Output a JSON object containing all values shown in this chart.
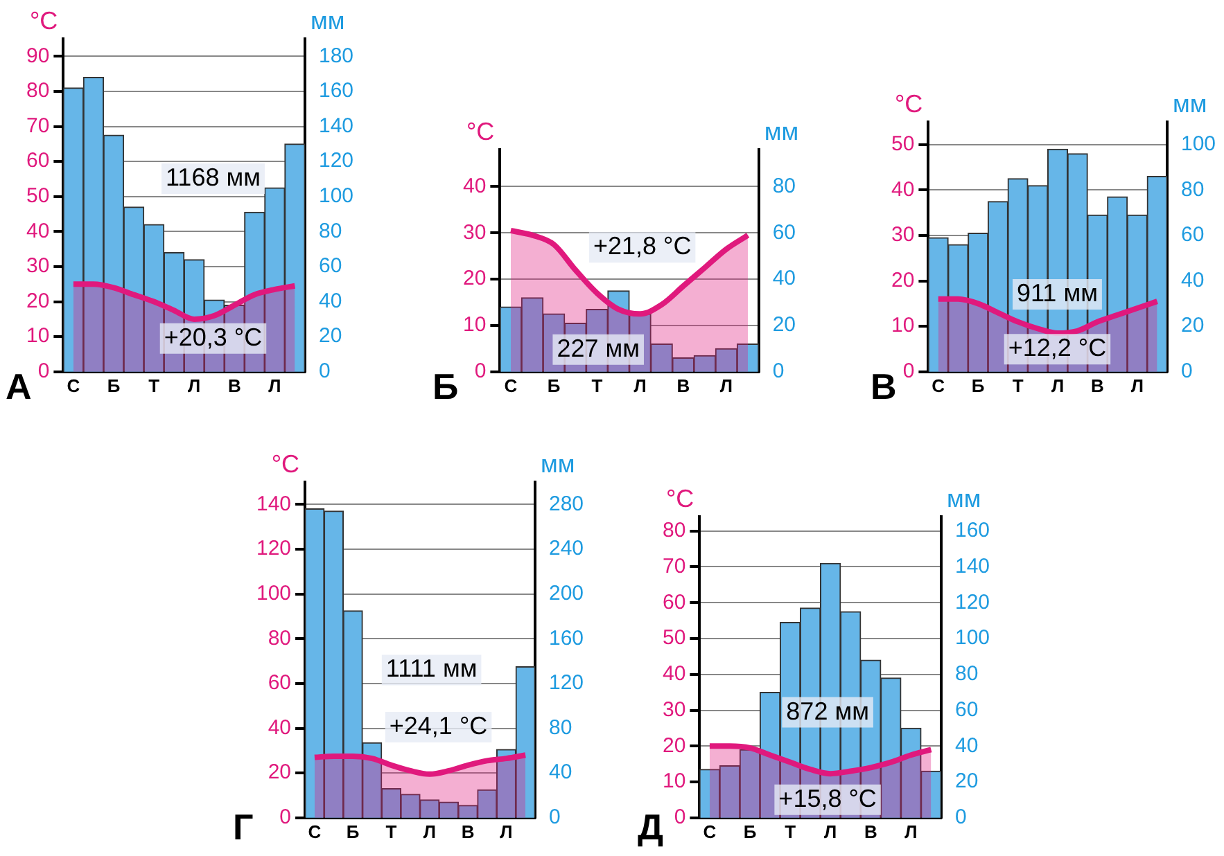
{
  "chart_data": [
    {
      "type": "bar",
      "title": "А",
      "ylabel": "°C",
      "y2label": "мм",
      "categories": [
        "С",
        null,
        "Б",
        null,
        "Т",
        null,
        "Л",
        null,
        "В",
        null,
        "Л",
        null
      ],
      "ylim": [
        0,
        95
      ],
      "yticks": [
        0,
        10,
        20,
        30,
        40,
        50,
        60,
        70,
        80,
        90
      ],
      "y2lim": [
        0,
        190
      ],
      "y2ticks": [
        0,
        20,
        40,
        60,
        80,
        100,
        120,
        140,
        160,
        180
      ],
      "grid": "y",
      "annotations": [
        "1168 мм",
        "+20,3 °C"
      ],
      "series": [
        {
          "axis": "y2",
          "color": "#66b6e8",
          "values": [
            162,
            168,
            135,
            94,
            84,
            68,
            64,
            41,
            38,
            91,
            105,
            130
          ]
        },
        {
          "type": "area",
          "color": "#e0197d",
          "values": [
            25,
            25,
            24,
            22,
            20,
            17.5,
            15,
            16,
            19,
            22,
            23.5,
            24.5
          ]
        }
      ]
    },
    {
      "type": "bar",
      "title": "Б",
      "ylabel": "°C",
      "y2label": "мм",
      "categories": [
        "С",
        null,
        "Б",
        null,
        "Т",
        null,
        "Л",
        null,
        "В",
        null,
        "Л",
        null
      ],
      "ylim": [
        0,
        48
      ],
      "yticks": [
        0,
        10,
        20,
        30,
        40
      ],
      "y2lim": [
        0,
        96
      ],
      "y2ticks": [
        0,
        20,
        40,
        60,
        80
      ],
      "grid": "y",
      "annotations": [
        "227 мм",
        "+21,8 °C"
      ],
      "series": [
        {
          "axis": "y2",
          "color": "#66b6e8",
          "values": [
            28,
            32,
            25,
            21,
            27,
            35,
            25,
            12,
            6,
            7,
            10,
            12
          ]
        },
        {
          "type": "area",
          "color": "#e0197d",
          "values": [
            30.5,
            29.5,
            27.5,
            22,
            17,
            13.5,
            12.5,
            14.5,
            18.5,
            22.5,
            26.5,
            29.5
          ]
        }
      ]
    },
    {
      "type": "bar",
      "title": "В",
      "ylabel": "°C",
      "y2label": "мм",
      "categories": [
        "С",
        null,
        "Б",
        null,
        "Т",
        null,
        "Л",
        null,
        "В",
        null,
        "Л",
        null
      ],
      "ylim": [
        0,
        55
      ],
      "yticks": [
        0,
        10,
        20,
        30,
        40,
        50
      ],
      "y2lim": [
        0,
        110
      ],
      "y2ticks": [
        0,
        20,
        40,
        60,
        80,
        100
      ],
      "grid": "y",
      "annotations": [
        "911 мм",
        "+12,2 °C"
      ],
      "series": [
        {
          "axis": "y2",
          "color": "#66b6e8",
          "values": [
            59,
            56,
            61,
            75,
            85,
            82,
            98,
            96,
            69,
            77,
            69,
            86
          ]
        },
        {
          "type": "area",
          "color": "#e0197d",
          "values": [
            16,
            16,
            15,
            13,
            11,
            9.5,
            8.5,
            9,
            11,
            12.5,
            14,
            15.5
          ]
        }
      ]
    },
    {
      "type": "bar",
      "title": "Г",
      "ylabel": "°C",
      "y2label": "мм",
      "categories": [
        "С",
        null,
        "Б",
        null,
        "Т",
        null,
        "Л",
        null,
        "В",
        null,
        "Л",
        null
      ],
      "ylim": [
        0,
        150
      ],
      "yticks": [
        0,
        20,
        40,
        60,
        80,
        100,
        120,
        140
      ],
      "y2lim": [
        0,
        300
      ],
      "y2ticks": [
        0,
        40,
        80,
        120,
        160,
        200,
        240,
        280
      ],
      "grid": "y",
      "annotations": [
        "1111 мм",
        "+24,1 °C"
      ],
      "series": [
        {
          "axis": "y2",
          "color": "#66b6e8",
          "values": [
            276,
            274,
            185,
            67,
            26,
            21,
            16,
            14,
            11,
            25,
            61,
            135
          ]
        },
        {
          "type": "area",
          "color": "#e0197d",
          "values": [
            27,
            27.5,
            27.5,
            26.5,
            23.5,
            21,
            19.5,
            21,
            23.5,
            25.5,
            26.5,
            28
          ]
        }
      ]
    },
    {
      "type": "bar",
      "title": "Д",
      "ylabel": "°C",
      "y2label": "мм",
      "categories": [
        "С",
        null,
        "Б",
        null,
        "Т",
        null,
        "Л",
        null,
        "В",
        null,
        "Л",
        null
      ],
      "ylim": [
        0,
        84
      ],
      "yticks": [
        0,
        10,
        20,
        30,
        40,
        50,
        60,
        70,
        80
      ],
      "y2lim": [
        0,
        168
      ],
      "y2ticks": [
        0,
        20,
        40,
        60,
        80,
        100,
        120,
        140,
        160
      ],
      "grid": "y",
      "annotations": [
        "872 мм",
        "+15,8 °C"
      ],
      "series": [
        {
          "axis": "y2",
          "color": "#66b6e8",
          "values": [
            27,
            29,
            38,
            70,
            109,
            117,
            142,
            115,
            88,
            78,
            50,
            26
          ]
        },
        {
          "type": "area",
          "color": "#e0197d",
          "values": [
            20,
            20,
            19.5,
            17.5,
            15.5,
            13.5,
            12.3,
            13,
            14,
            15.5,
            17.5,
            19
          ]
        }
      ]
    }
  ]
}
